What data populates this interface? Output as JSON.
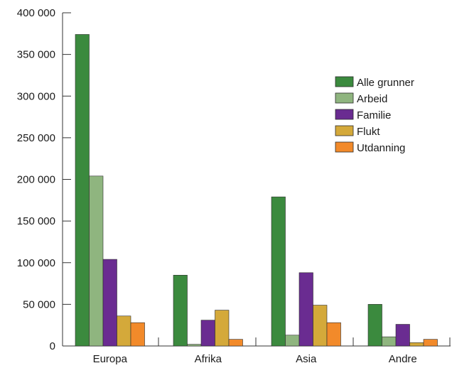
{
  "chart_data": {
    "type": "bar",
    "categories": [
      "Europa",
      "Afrika",
      "Asia",
      "Andre"
    ],
    "series": [
      {
        "name": "Alle grunner",
        "color": "#3b8a3e",
        "values": [
          374000,
          85000,
          179000,
          50000
        ]
      },
      {
        "name": "Arbeid",
        "color": "#8fb57f",
        "values": [
          204000,
          2000,
          13000,
          11000
        ]
      },
      {
        "name": "Familie",
        "color": "#6a2c91",
        "values": [
          104000,
          31000,
          88000,
          26000
        ]
      },
      {
        "name": "Flukt",
        "color": "#d4a93a",
        "values": [
          36000,
          43000,
          49000,
          4000
        ]
      },
      {
        "name": "Utdanning",
        "color": "#f28a2a",
        "values": [
          28000,
          8000,
          28000,
          8000
        ]
      }
    ],
    "ylim": [
      0,
      400000
    ],
    "yticks": [
      0,
      50000,
      100000,
      150000,
      200000,
      250000,
      300000,
      350000,
      400000
    ],
    "ytick_labels": [
      "0",
      "50 000",
      "100 000",
      "150 000",
      "200 000",
      "250 000",
      "300 000",
      "350 000",
      "400 000"
    ],
    "title": "",
    "xlabel": "",
    "ylabel": "",
    "grid": false,
    "legend_position": "top-right"
  }
}
